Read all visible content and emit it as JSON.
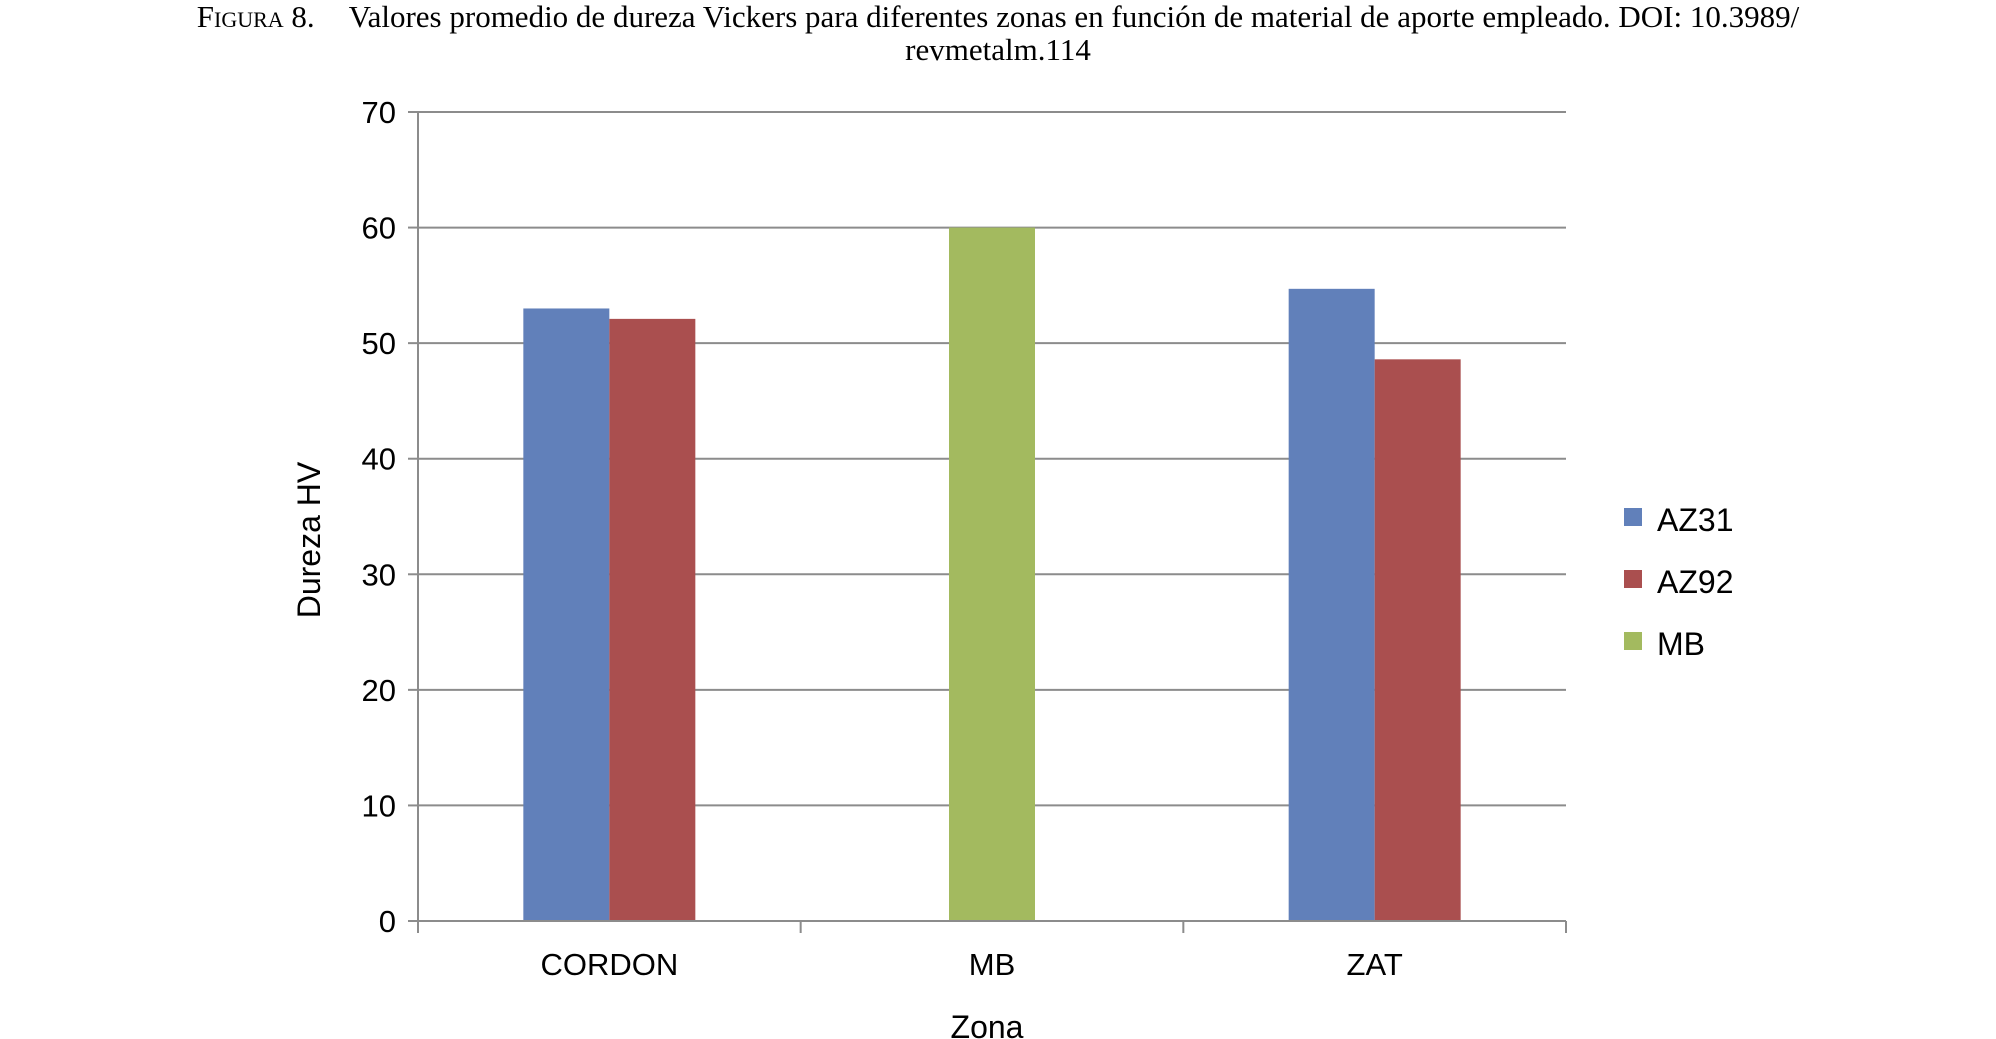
{
  "caption": {
    "label": "Figura 8.",
    "line1": "Valores promedio de dureza Vickers para diferentes zonas en función de material de aporte empleado. DOI: 10.3989/",
    "line2": "revmetalm.114"
  },
  "chart_data": {
    "type": "bar",
    "title": "",
    "xlabel": "Zona",
    "ylabel": "Dureza HV",
    "categories": [
      "CORDON",
      "MB",
      "ZAT"
    ],
    "ylim": [
      0,
      70
    ],
    "yticks": [
      0,
      10,
      20,
      30,
      40,
      50,
      60,
      70
    ],
    "grid": true,
    "legend_position": "right",
    "series": [
      {
        "name": "AZ31",
        "color": "#6180BA",
        "values": [
          53,
          null,
          54.7
        ]
      },
      {
        "name": "AZ92",
        "color": "#AA4F4F",
        "values": [
          52.1,
          null,
          48.6
        ]
      },
      {
        "name": "MB",
        "color": "#A3BA5F",
        "values": [
          null,
          60,
          null
        ]
      }
    ]
  }
}
